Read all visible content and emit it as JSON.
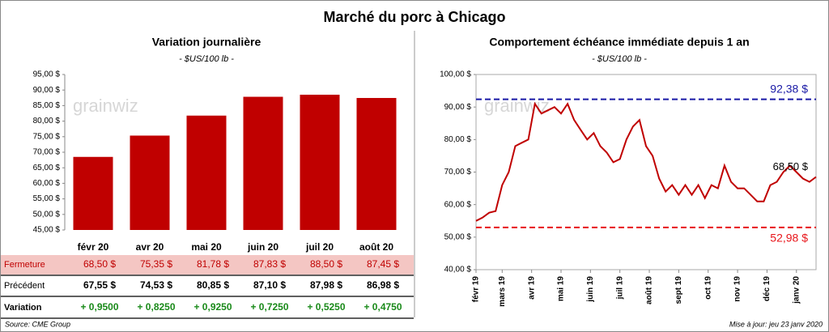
{
  "title": "Marché du porc à Chicago",
  "watermark": "grainwiz",
  "source": "Source: CME Group",
  "updated": "Mise à jour: jeu 23 janv 2020",
  "chart_data": [
    {
      "type": "bar",
      "title": "Variation journalière",
      "subtitle": "- $US/100 lb -",
      "categories": [
        "févr 20",
        "avr 20",
        "mai 20",
        "juin 20",
        "juil 20",
        "août 20"
      ],
      "values": [
        68.5,
        75.35,
        81.78,
        87.83,
        88.5,
        87.45
      ],
      "value_labels": [
        "68,50 $",
        "75,35 $",
        "81,78 $",
        "87,83 $",
        "88,50 $",
        "87,45 $"
      ],
      "color": "#c00000",
      "grid": false,
      "ylim": [
        45,
        95
      ],
      "yticks": [
        {
          "value": 45,
          "label": "45,00 $"
        },
        {
          "value": 50,
          "label": "50,00 $"
        },
        {
          "value": 55,
          "label": "55,00 $"
        },
        {
          "value": 60,
          "label": "60,00 $"
        },
        {
          "value": 65,
          "label": "65,00 $"
        },
        {
          "value": 70,
          "label": "70,00 $"
        },
        {
          "value": 75,
          "label": "75,00 $"
        },
        {
          "value": 80,
          "label": "80,00 $"
        },
        {
          "value": 85,
          "label": "85,00 $"
        },
        {
          "value": 90,
          "label": "90,00 $"
        },
        {
          "value": 95,
          "label": "95,00 $"
        }
      ]
    },
    {
      "type": "line",
      "title": "Comportement échéance immédiate depuis 1 an",
      "subtitle": "- $US/100 lb -",
      "values": [
        55,
        56,
        57.5,
        58,
        66,
        70,
        78,
        79,
        80,
        91,
        88,
        89,
        90,
        88,
        91,
        86,
        83,
        80,
        82,
        78,
        76,
        73,
        74,
        80,
        84,
        86,
        78,
        75,
        68,
        64,
        66,
        63,
        66,
        63,
        66,
        62,
        66,
        65,
        72,
        67,
        65,
        65,
        63,
        61,
        61,
        66,
        67,
        70,
        72,
        70,
        68,
        67,
        68.5
      ],
      "last_value_label": "68,50 $",
      "color": "#c00000",
      "grid": false,
      "xlim": [
        0,
        52
      ],
      "xticks": [
        {
          "value": 0,
          "label": "févr 19"
        },
        {
          "value": 4,
          "label": "mars 19"
        },
        {
          "value": 8.5,
          "label": "avr 19"
        },
        {
          "value": 13,
          "label": "mai 19"
        },
        {
          "value": 17.5,
          "label": "juin 19"
        },
        {
          "value": 22,
          "label": "juil 19"
        },
        {
          "value": 26.5,
          "label": "août 19"
        },
        {
          "value": 31,
          "label": "sept 19"
        },
        {
          "value": 35.5,
          "label": "oct 19"
        },
        {
          "value": 40,
          "label": "nov 19"
        },
        {
          "value": 44.5,
          "label": "déc 19"
        },
        {
          "value": 49,
          "label": "janv 20"
        }
      ],
      "ylim": [
        40,
        100
      ],
      "yticks": [
        {
          "value": 40,
          "label": "40,00 $"
        },
        {
          "value": 50,
          "label": "50,00 $"
        },
        {
          "value": 60,
          "label": "60,00 $"
        },
        {
          "value": 70,
          "label": "70,00 $"
        },
        {
          "value": 80,
          "label": "80,00 $"
        },
        {
          "value": 90,
          "label": "90,00 $"
        },
        {
          "value": 100,
          "label": "100,00 $"
        }
      ],
      "reference_lines": [
        {
          "value": 92.38,
          "label": "92,38 $",
          "color": "#1a1aa6"
        },
        {
          "value": 52.98,
          "label": "52,98 $",
          "color": "#e8161b"
        }
      ]
    }
  ],
  "table": {
    "rows": [
      {
        "label": "Fermeture"
      },
      {
        "label": "Précédent",
        "cells": [
          "67,55 $",
          "74,53 $",
          "80,85 $",
          "87,10 $",
          "87,98 $",
          "86,98 $"
        ]
      },
      {
        "label": "Variation",
        "cells": [
          "+ 0,9500",
          "+ 0,8250",
          "+ 0,9250",
          "+ 0,7250",
          "+ 0,5250",
          "+ 0,4750"
        ]
      }
    ]
  }
}
